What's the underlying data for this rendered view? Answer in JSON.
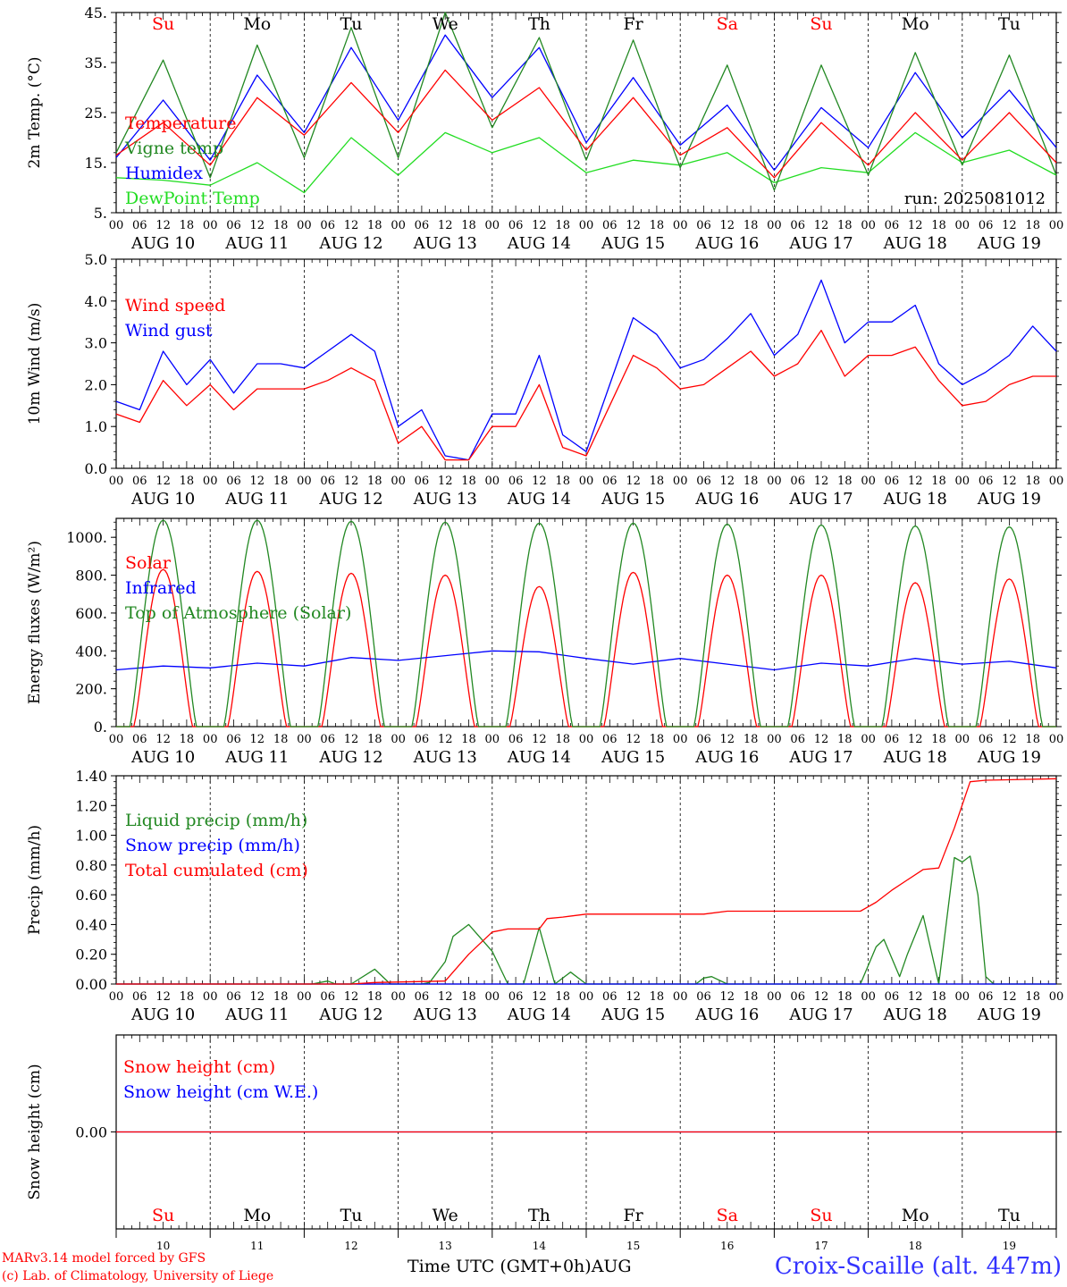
{
  "days": [
    {
      "name": "Su",
      "date": "AUG 10",
      "num": "10",
      "weekend": true
    },
    {
      "name": "Mo",
      "date": "AUG 11",
      "num": "11",
      "weekend": false
    },
    {
      "name": "Tu",
      "date": "AUG 12",
      "num": "12",
      "weekend": false
    },
    {
      "name": "We",
      "date": "AUG 13",
      "num": "13",
      "weekend": false
    },
    {
      "name": "Th",
      "date": "AUG 14",
      "num": "14",
      "weekend": false
    },
    {
      "name": "Fr",
      "date": "AUG 15",
      "num": "15",
      "weekend": false
    },
    {
      "name": "Sa",
      "date": "AUG 16",
      "num": "16",
      "weekend": true
    },
    {
      "name": "Su",
      "date": "AUG 17",
      "num": "17",
      "weekend": true
    },
    {
      "name": "Mo",
      "date": "AUG 18",
      "num": "18",
      "weekend": false
    },
    {
      "name": "Tu",
      "date": "AUG 19",
      "num": "19",
      "weekend": false
    }
  ],
  "hour_labels": [
    "00",
    "06",
    "12",
    "18"
  ],
  "final_hour_label": "00",
  "run_label": "run: 2025081012",
  "colors": {
    "red": "#ff0000",
    "green": "#008800",
    "blue": "#0000ff",
    "lightgreen": "#22dd22",
    "axis": "#000000"
  },
  "footer": {
    "credit_line1": "MARv3.14 model forced by GFS",
    "credit_line2": "(c) Lab. of Climatology, University of Liege",
    "x_title": "Time UTC (GMT+0h)AUG",
    "station": "Croix-Scaille (alt. 447m)"
  },
  "chart_data": [
    {
      "type": "line",
      "ylabel": "2m Temp. (°C)",
      "ylim": [
        5,
        45
      ],
      "yticks": [
        "5.",
        "15.",
        "25.",
        "35.",
        "45."
      ],
      "grid": false,
      "x": [
        0,
        12,
        24,
        36,
        48,
        60,
        72,
        84,
        96,
        108,
        120,
        132,
        144,
        156,
        168,
        180,
        192,
        204,
        216,
        228,
        240
      ],
      "series": [
        {
          "name": "Temperature",
          "color": "#ff0000",
          "values": [
            16.5,
            23,
            14.5,
            28,
            20.5,
            31,
            21,
            33.5,
            23.5,
            30,
            17.5,
            28,
            16.5,
            22,
            12,
            23,
            14.5,
            25,
            15.5,
            25,
            15
          ]
        },
        {
          "name": "Vigne temp",
          "color": "#228822",
          "values": [
            17,
            35.5,
            12,
            38.5,
            16,
            42,
            16,
            45,
            22,
            40,
            15.5,
            39.5,
            14,
            34.5,
            9.5,
            34.5,
            12.5,
            37,
            14.5,
            36.5,
            12.5
          ]
        },
        {
          "name": "Humidex",
          "color": "#0000ff",
          "values": [
            16,
            27.5,
            15.5,
            32.5,
            21,
            38,
            23.5,
            40.5,
            28,
            38,
            19,
            32,
            18.5,
            26.5,
            13.5,
            26,
            18,
            33,
            20,
            29.5,
            18
          ]
        },
        {
          "name": "DewPoint Temp",
          "color": "#22dd22",
          "values": [
            12,
            11.5,
            10.5,
            15,
            9,
            20,
            12.5,
            21,
            17,
            20,
            13,
            15.5,
            14.5,
            17,
            11,
            14,
            13,
            21,
            15,
            17.5,
            12.5
          ]
        }
      ]
    },
    {
      "type": "line",
      "ylabel": "10m Wind (m/s)",
      "ylim": [
        0,
        5
      ],
      "yticks": [
        "0.0",
        "1.0",
        "2.0",
        "3.0",
        "4.0",
        "5.0"
      ],
      "grid": false,
      "x": [
        0,
        6,
        12,
        18,
        24,
        30,
        36,
        42,
        48,
        54,
        60,
        66,
        72,
        78,
        84,
        90,
        96,
        102,
        108,
        114,
        120,
        126,
        132,
        138,
        144,
        150,
        156,
        162,
        168,
        174,
        180,
        186,
        192,
        198,
        204,
        210,
        216,
        222,
        228,
        234,
        240
      ],
      "series": [
        {
          "name": "Wind speed",
          "color": "#ff0000",
          "values": [
            1.3,
            1.1,
            2.1,
            1.5,
            2.0,
            1.4,
            1.9,
            1.9,
            1.9,
            2.1,
            2.4,
            2.1,
            0.6,
            1.0,
            0.2,
            0.2,
            1.0,
            1.0,
            2.0,
            0.5,
            0.3,
            1.5,
            2.7,
            2.4,
            1.9,
            2.0,
            2.4,
            2.8,
            2.2,
            2.5,
            3.3,
            2.2,
            2.7,
            2.7,
            2.9,
            2.1,
            1.5,
            1.6,
            2.0,
            2.2,
            2.2
          ]
        },
        {
          "name": "Wind gust",
          "color": "#0000ff",
          "values": [
            1.6,
            1.4,
            2.8,
            2.0,
            2.6,
            1.8,
            2.5,
            2.5,
            2.4,
            2.8,
            3.2,
            2.8,
            1.0,
            1.4,
            0.3,
            0.2,
            1.3,
            1.3,
            2.7,
            0.8,
            0.4,
            2.0,
            3.6,
            3.2,
            2.4,
            2.6,
            3.1,
            3.7,
            2.7,
            3.2,
            4.5,
            3.0,
            3.5,
            3.5,
            3.9,
            2.5,
            2.0,
            2.3,
            2.7,
            3.4,
            2.8
          ]
        }
      ]
    },
    {
      "type": "line",
      "ylabel": "Energy fluxes (W/m²)",
      "ylim": [
        0,
        1100
      ],
      "yticks": [
        "0.",
        "200.",
        "400.",
        "600.",
        "800.",
        "1000."
      ],
      "grid": false,
      "diurnal": true,
      "series": [
        {
          "name": "Solar",
          "color": "#ff0000",
          "daily_peak": [
            830,
            820,
            810,
            800,
            740,
            815,
            800,
            800,
            760,
            780
          ],
          "sunrise_hour": 4.5,
          "sunset_hour": 19.5
        },
        {
          "name": "Infrared",
          "color": "#0000ff",
          "x": [
            0,
            12,
            24,
            36,
            48,
            60,
            72,
            84,
            96,
            108,
            120,
            132,
            144,
            156,
            168,
            180,
            192,
            204,
            216,
            228,
            240
          ],
          "values": [
            300,
            320,
            310,
            335,
            320,
            365,
            350,
            375,
            400,
            395,
            360,
            330,
            360,
            330,
            300,
            335,
            320,
            360,
            330,
            345,
            310
          ]
        },
        {
          "name": "Top of Atmosphere (Solar)",
          "color": "#228822",
          "daily_peak": [
            1090,
            1090,
            1085,
            1080,
            1075,
            1075,
            1070,
            1065,
            1060,
            1055
          ],
          "sunrise_hour": 3.5,
          "sunset_hour": 20.5
        }
      ]
    },
    {
      "type": "line",
      "ylabel": "Precip (mm/h)",
      "ylim": [
        0,
        1.4
      ],
      "yticks": [
        "0.00",
        "0.20",
        "0.40",
        "0.60",
        "0.80",
        "1.00",
        "1.20",
        "1.40"
      ],
      "grid": false,
      "series": [
        {
          "name": "Liquid precip (mm/h)",
          "color": "#228822",
          "x": [
            0,
            50,
            54,
            56,
            60,
            66,
            70,
            74,
            78,
            80,
            84,
            86,
            90,
            96,
            100,
            104,
            108,
            112,
            116,
            120,
            148,
            150,
            152,
            156,
            170,
            190,
            194,
            196,
            200,
            202,
            206,
            210,
            214,
            216,
            218,
            220,
            222,
            224,
            226,
            228,
            240
          ],
          "values": [
            0,
            0,
            0.02,
            0,
            0,
            0.1,
            0,
            0,
            0,
            0.01,
            0.15,
            0.32,
            0.4,
            0.22,
            0,
            0,
            0.38,
            0,
            0.08,
            0,
            0,
            0.04,
            0.05,
            0,
            0,
            0,
            0.25,
            0.3,
            0.05,
            0.2,
            0.46,
            0,
            0.85,
            0.82,
            0.86,
            0.6,
            0.05,
            0,
            0,
            0,
            0
          ]
        },
        {
          "name": "Snow precip (mm/h)",
          "color": "#0000ff",
          "x": [
            0,
            240
          ],
          "values": [
            0,
            0
          ]
        },
        {
          "name": "Total cumulated (cm)",
          "color": "#ff0000",
          "x": [
            0,
            60,
            66,
            84,
            90,
            96,
            100,
            108,
            110,
            114,
            120,
            150,
            156,
            190,
            194,
            198,
            202,
            206,
            210,
            214,
            218,
            222,
            240
          ],
          "values": [
            0,
            0,
            0.01,
            0.02,
            0.2,
            0.35,
            0.37,
            0.37,
            0.44,
            0.45,
            0.47,
            0.47,
            0.49,
            0.49,
            0.55,
            0.63,
            0.7,
            0.77,
            0.78,
            1.05,
            1.36,
            1.37,
            1.38
          ]
        }
      ]
    },
    {
      "type": "line",
      "ylabel": "Snow height (cm)",
      "ylim": [
        -1,
        1
      ],
      "yticks": [
        "0.00"
      ],
      "grid": false,
      "series": [
        {
          "name": "Snow height (cm)",
          "color": "#ff0000",
          "x": [
            0,
            240
          ],
          "values": [
            0,
            0
          ]
        },
        {
          "name": "Snow height (cm W.E.)",
          "color": "#0000ff",
          "x": [
            0,
            240
          ],
          "values": [
            0,
            0
          ]
        }
      ]
    }
  ]
}
